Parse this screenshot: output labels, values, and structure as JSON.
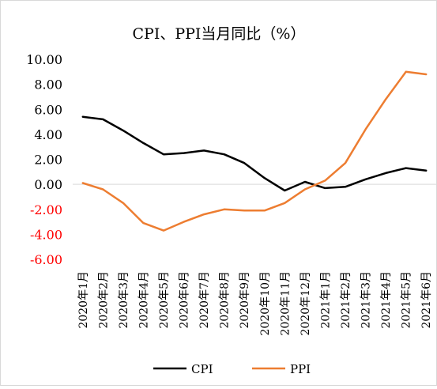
{
  "chart_data": {
    "type": "line",
    "title": "CPI、PPI当月同比（%）",
    "categories": [
      "2020年1月",
      "2020年2月",
      "2020年3月",
      "2020年4月",
      "2020年5月",
      "2020年6月",
      "2020年7月",
      "2020年8月",
      "2020年9月",
      "2020年10月",
      "2020年11月",
      "2020年12月",
      "2021年1月",
      "2021年2月",
      "2021年3月",
      "2021年4月",
      "2021年5月",
      "2021年6月"
    ],
    "y_ticks": [
      "10.00",
      "8.00",
      "6.00",
      "4.00",
      "2.00",
      "0.00",
      "-2.00",
      "-4.00",
      "-6.00"
    ],
    "ylim": [
      -6,
      10
    ],
    "series": [
      {
        "name": "CPI",
        "color": "#000000",
        "values": [
          5.4,
          5.2,
          4.3,
          3.3,
          2.4,
          2.5,
          2.7,
          2.4,
          1.7,
          0.5,
          -0.5,
          0.2,
          -0.3,
          -0.2,
          0.4,
          0.9,
          1.3,
          1.1
        ]
      },
      {
        "name": "PPI",
        "color": "#ed7d31",
        "values": [
          0.1,
          -0.4,
          -1.5,
          -3.1,
          -3.7,
          -3.0,
          -2.4,
          -2.0,
          -2.1,
          -2.1,
          -1.5,
          -0.4,
          0.3,
          1.7,
          4.4,
          6.8,
          9.0,
          8.8
        ]
      }
    ],
    "grid": false,
    "legend_position": "bottom"
  }
}
